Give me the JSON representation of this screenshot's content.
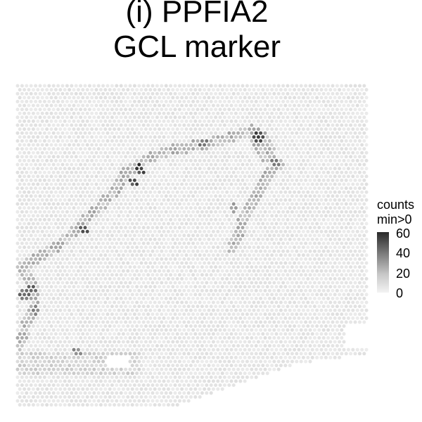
{
  "title_line1": "(i) PPFIA2",
  "title_line2": "GCL marker",
  "legend": {
    "title_line1": "counts",
    "title_line2": "min>0",
    "ticks": [
      "60",
      "40",
      "20",
      "0"
    ]
  },
  "colors": {
    "low": "#f1f1f1",
    "high": "#2a2a2a",
    "background": "#ffffff"
  },
  "chart_data": {
    "type": "heatmap",
    "description": "",
    "value_range": [
      0,
      60
    ],
    "hotspots": [
      {
        "x": 0.35,
        "y": 0.26,
        "value": 60
      },
      {
        "x": 0.33,
        "y": 0.3,
        "value": 55
      },
      {
        "x": 0.19,
        "y": 0.45,
        "value": 55
      },
      {
        "x": 0.69,
        "y": 0.16,
        "value": 60
      },
      {
        "x": 0.74,
        "y": 0.24,
        "value": 45
      },
      {
        "x": 0.04,
        "y": 0.63,
        "value": 50
      },
      {
        "x": 0.02,
        "y": 0.65,
        "value": 45
      },
      {
        "x": 0.05,
        "y": 0.7,
        "value": 40
      },
      {
        "x": 0.17,
        "y": 0.83,
        "value": 35
      },
      {
        "x": 0.53,
        "y": 0.18,
        "value": 40
      },
      {
        "x": 0.62,
        "y": 0.38,
        "value": 30
      }
    ]
  }
}
